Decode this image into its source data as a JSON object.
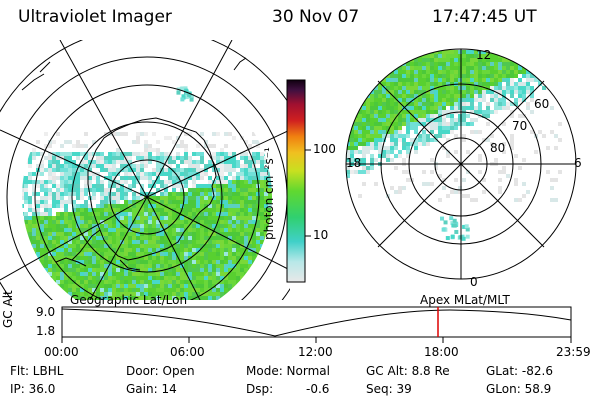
{
  "header": {
    "title": "Ultraviolet Imager",
    "date": "30 Nov 07",
    "time": "17:47:45 UT"
  },
  "colorbar": {
    "unit": "photon cm⁻²s⁻¹",
    "ticks": [
      "100",
      "10"
    ]
  },
  "polar_plot": {
    "mlt_labels": [
      "12",
      "18",
      "6",
      "0"
    ],
    "mlat_labels": [
      "60",
      "70",
      "80"
    ]
  },
  "timeline": {
    "ylabel": "GC Alt",
    "yticks": [
      "9.0",
      "1.8"
    ],
    "left_label": "Geographic Lat/Lon",
    "right_label": "Apex MLat/MLT",
    "xticks": [
      "00:00",
      "06:00",
      "12:00",
      "18:00",
      "23:59"
    ],
    "marker_color": "#dd0000"
  },
  "footer": {
    "flt": "Flt: LBHL",
    "ip": "IP: 36.0",
    "door": "Door: Open",
    "gain": "Gain: 14",
    "mode": "Mode: Normal",
    "dsp": "Dsp:",
    "dsp_value": "-0.6",
    "gc_alt": "GC Alt: 8.8 Re",
    "seq": "Seq: 39",
    "glat": "GLat: -82.6",
    "glon": "GLon: 58.9"
  }
}
